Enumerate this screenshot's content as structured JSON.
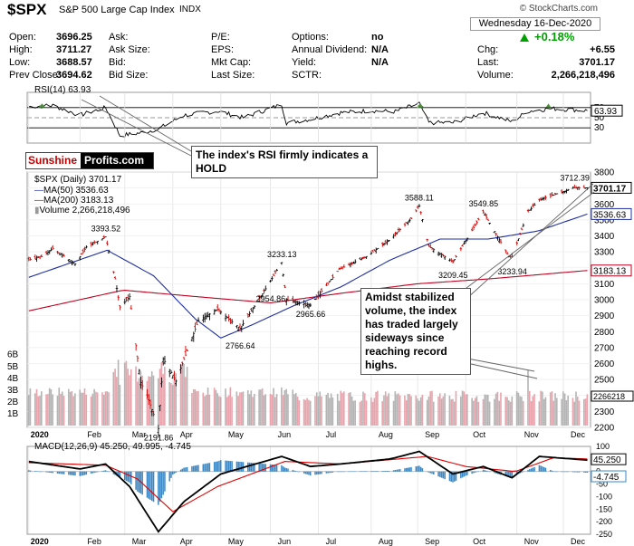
{
  "header": {
    "ticker": "$SPX",
    "name": "S&P 500 Large Cap Index",
    "exchange": "INDX",
    "source": "© StockCharts.com",
    "date": "Wednesday 16-Dec-2020",
    "change_pct": "+0.18%",
    "quote_rows": [
      [
        [
          "Open:",
          "3696.25"
        ],
        [
          "Ask:",
          ""
        ],
        [
          "P/E:",
          ""
        ],
        [
          "Options:",
          "no"
        ]
      ],
      [
        [
          "High:",
          "3711.27"
        ],
        [
          "Ask Size:",
          ""
        ],
        [
          "EPS:",
          ""
        ],
        [
          "Annual Dividend:",
          "N/A"
        ]
      ],
      [
        [
          "Low:",
          "3688.57"
        ],
        [
          "Bid:",
          ""
        ],
        [
          "Mkt Cap:",
          ""
        ],
        [
          "Yield:",
          "N/A"
        ]
      ],
      [
        [
          "Prev Close:",
          "3694.62"
        ],
        [
          "Bid Size:",
          ""
        ],
        [
          "Last Size:",
          ""
        ],
        [
          "SCTR:",
          ""
        ]
      ]
    ],
    "right_rows": [
      [
        "Chg:",
        "+6.55"
      ],
      [
        "Last:",
        "3701.17"
      ],
      [
        "Volume:",
        "2,266,218,496"
      ]
    ]
  },
  "logo": {
    "part1": "Sunshine",
    "part2": "Profits.com"
  },
  "notes": {
    "rsi": "The index's RSI firmly indicates a HOLD",
    "volume": "Amidst stabilized volume, the index has traded largely sideways since reaching record highs."
  },
  "colors": {
    "price": "#000000",
    "ma50": "#1f2fa0",
    "ma200": "#c0001e",
    "volume_up": "#b4b4b4",
    "volume_down": "#e8a3ac",
    "rsi_fill": "#4f8f3f",
    "macd": "#000000",
    "macd_signal": "#e00000",
    "histogram": "#3b87c4",
    "up": "#00a000"
  },
  "chart_data": [
    {
      "type": "line",
      "title": "RSI(14) 63.93",
      "ylim": [
        0,
        100
      ],
      "yticks": [
        30,
        50,
        70
      ],
      "guide_levels": [
        30,
        70
      ],
      "last_value": 63.93,
      "x": [
        "2020-01-02",
        "2020-01-17",
        "2020-02-03",
        "2020-02-19",
        "2020-02-28",
        "2020-03-12",
        "2020-03-23",
        "2020-04-08",
        "2020-04-29",
        "2020-05-15",
        "2020-06-08",
        "2020-06-11",
        "2020-06-26",
        "2020-07-15",
        "2020-08-03",
        "2020-08-18",
        "2020-09-02",
        "2020-09-08",
        "2020-09-23",
        "2020-10-12",
        "2020-10-30",
        "2020-11-09",
        "2020-11-24",
        "2020-12-16"
      ],
      "values": [
        72,
        74,
        55,
        70,
        15,
        20,
        28,
        55,
        63,
        50,
        76,
        40,
        47,
        60,
        64,
        62,
        78,
        40,
        40,
        60,
        42,
        63,
        68,
        63.93
      ]
    },
    {
      "type": "line",
      "title": "$SPX (Daily) 3701.17",
      "legend": [
        "MA(50) 3536.63",
        "MA(200) 3183.13",
        "Volume 2,266,218,496"
      ],
      "ylim": [
        2200,
        3800
      ],
      "yticks": [
        2200,
        2300,
        2400,
        2500,
        2600,
        2700,
        2800,
        2900,
        3000,
        3100,
        3200,
        3300,
        3400,
        3500,
        3600,
        3700,
        3800
      ],
      "volume_ticks": [
        "1B",
        "2B",
        "3B",
        "4B",
        "5B",
        "6B"
      ],
      "months": [
        "2020",
        "Feb",
        "Mar",
        "Apr",
        "May",
        "Jun",
        "Jul",
        "Aug",
        "Sep",
        "Oct",
        "Nov",
        "Dec"
      ],
      "price": {
        "x": [
          "2020-01-02",
          "2020-01-10",
          "2020-01-17",
          "2020-01-31",
          "2020-02-07",
          "2020-02-19",
          "2020-02-25",
          "2020-02-28",
          "2020-03-05",
          "2020-03-12",
          "2020-03-16",
          "2020-03-23",
          "2020-03-26",
          "2020-04-03",
          "2020-04-17",
          "2020-04-29",
          "2020-05-13",
          "2020-05-27",
          "2020-06-08",
          "2020-06-11",
          "2020-06-26",
          "2020-07-14",
          "2020-07-31",
          "2020-08-14",
          "2020-08-28",
          "2020-09-02",
          "2020-09-08",
          "2020-09-23",
          "2020-10-12",
          "2020-10-28",
          "2020-10-30",
          "2020-11-09",
          "2020-11-16",
          "2020-12-08",
          "2020-12-16"
        ],
        "values": [
          3250,
          3270,
          3320,
          3225,
          3330,
          3393.52,
          3130,
          2954,
          3020,
          2480,
          2400,
          2191.86,
          2630,
          2490,
          2870,
          2939,
          2820,
          3036,
          3233.13,
          3000,
          2965.66,
          3190,
          3271,
          3372,
          3508,
          3588.11,
          3333,
          3236,
          3549.85,
          3271,
          3269.96,
          3550,
          3626,
          3702,
          3701.17
        ]
      },
      "ma50": {
        "x": [
          "2020-01-02",
          "2020-02-20",
          "2020-03-20",
          "2020-04-15",
          "2020-05-01",
          "2020-05-20",
          "2020-06-15",
          "2020-07-15",
          "2020-08-15",
          "2020-09-15",
          "2020-10-15",
          "2020-11-15",
          "2020-12-16"
        ],
        "values": [
          3140,
          3310,
          3150,
          2880,
          2760,
          2840,
          2960,
          3080,
          3250,
          3380,
          3380,
          3430,
          3536.63
        ]
      },
      "ma200": {
        "x": [
          "2020-01-02",
          "2020-03-01",
          "2020-04-15",
          "2020-06-01",
          "2020-07-15",
          "2020-09-01",
          "2020-10-15",
          "2020-12-16"
        ],
        "values": [
          2930,
          3060,
          3020,
          2980,
          3040,
          3100,
          3130,
          3183.13
        ]
      },
      "annotations": [
        {
          "x": "2020-02-19",
          "value": 3393.52,
          "label": "3393.52"
        },
        {
          "x": "2020-03-23",
          "value": 2191.86,
          "label": "2191.86"
        },
        {
          "x": "2020-05-13",
          "value": 2766.64,
          "label": "2766.64"
        },
        {
          "x": "2020-06-01",
          "value": 2954.86,
          "label": "2954.86"
        },
        {
          "x": "2020-06-08",
          "value": 3233.13,
          "label": "3233.13"
        },
        {
          "x": "2020-06-26",
          "value": 2965.66,
          "label": "2965.66"
        },
        {
          "x": "2020-09-02",
          "value": 3588.11,
          "label": "3588.11"
        },
        {
          "x": "2020-09-23",
          "value": 3209.45,
          "label": "3209.45"
        },
        {
          "x": "2020-10-12",
          "value": 3549.85,
          "label": "3549.85"
        },
        {
          "x": "2020-10-30",
          "value": 3233.94,
          "label": "3233.94"
        },
        {
          "x": "2020-12-08",
          "value": 3712.39,
          "label": "3712.39"
        }
      ],
      "right_tags": [
        {
          "value": 3701.17,
          "label": "3701.17"
        },
        {
          "value": 3536.63,
          "label": "3536.63"
        },
        {
          "value": 3183.13,
          "label": "3183.13"
        }
      ],
      "volume_tag": "2266218"
    },
    {
      "type": "line",
      "title": "MACD(12,26,9) 45.250, 49.995, -4.745",
      "ylim": [
        -250,
        100
      ],
      "yticks": [
        100,
        50,
        0,
        -50,
        -100,
        -150,
        -200,
        -250
      ],
      "macd": {
        "x": [
          "2020-01-02",
          "2020-02-03",
          "2020-02-19",
          "2020-03-05",
          "2020-03-23",
          "2020-04-08",
          "2020-05-01",
          "2020-06-08",
          "2020-06-26",
          "2020-07-15",
          "2020-08-15",
          "2020-09-02",
          "2020-09-23",
          "2020-10-12",
          "2020-10-30",
          "2020-11-16",
          "2020-12-16"
        ],
        "values": [
          40,
          10,
          30,
          -60,
          -240,
          -120,
          -10,
          60,
          20,
          30,
          50,
          80,
          -10,
          20,
          -25,
          60,
          45.25
        ]
      },
      "signal": {
        "x": [
          "2020-01-02",
          "2020-02-19",
          "2020-03-10",
          "2020-04-01",
          "2020-04-29",
          "2020-06-10",
          "2020-07-15",
          "2020-09-07",
          "2020-10-01",
          "2020-11-01",
          "2020-11-25",
          "2020-12-16"
        ],
        "values": [
          35,
          25,
          -30,
          -160,
          -60,
          40,
          30,
          60,
          20,
          0,
          55,
          49.995
        ]
      },
      "histogram_last": -4.745,
      "right_tags": [
        {
          "value": 45.25,
          "label": "45.250"
        },
        {
          "value": -4.745,
          "label": "-4.745"
        }
      ]
    }
  ]
}
